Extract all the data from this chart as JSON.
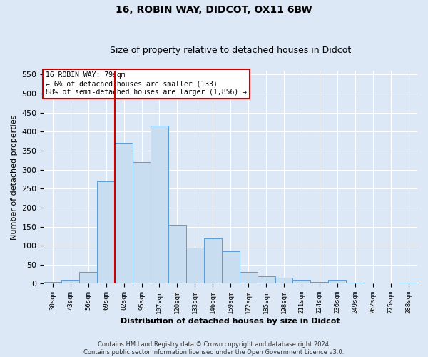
{
  "title_line1": "16, ROBIN WAY, DIDCOT, OX11 6BW",
  "title_line2": "Size of property relative to detached houses in Didcot",
  "xlabel": "Distribution of detached houses by size in Didcot",
  "ylabel": "Number of detached properties",
  "footer_line1": "Contains HM Land Registry data © Crown copyright and database right 2024.",
  "footer_line2": "Contains public sector information licensed under the Open Government Licence v3.0.",
  "annotation_line1": "16 ROBIN WAY: 79sqm",
  "annotation_line2": "← 6% of detached houses are smaller (133)",
  "annotation_line3": "88% of semi-detached houses are larger (1,856) →",
  "bar_edge_color": "#5b9bd5",
  "bar_face_color": "#c9ddf0",
  "vline_color": "#cc0000",
  "categories": [
    "30sqm",
    "43sqm",
    "56sqm",
    "69sqm",
    "82sqm",
    "95sqm",
    "107sqm",
    "120sqm",
    "133sqm",
    "146sqm",
    "159sqm",
    "172sqm",
    "185sqm",
    "198sqm",
    "211sqm",
    "224sqm",
    "236sqm",
    "249sqm",
    "262sqm",
    "275sqm",
    "288sqm"
  ],
  "values": [
    5,
    10,
    30,
    270,
    370,
    320,
    415,
    155,
    95,
    120,
    85,
    30,
    20,
    15,
    10,
    5,
    10,
    2,
    1,
    0,
    2
  ],
  "ylim": [
    0,
    560
  ],
  "yticks": [
    0,
    50,
    100,
    150,
    200,
    250,
    300,
    350,
    400,
    450,
    500,
    550
  ],
  "background_color": "#dce8f5",
  "grid_color": "#ffffff",
  "annotation_box_facecolor": "#ffffff",
  "annotation_box_edgecolor": "#cc0000",
  "vline_x_index": 3.5,
  "title1_fontsize": 10,
  "title2_fontsize": 9,
  "xlabel_fontsize": 8,
  "ylabel_fontsize": 8,
  "xtick_fontsize": 6.5,
  "ytick_fontsize": 8,
  "footer_fontsize": 6
}
